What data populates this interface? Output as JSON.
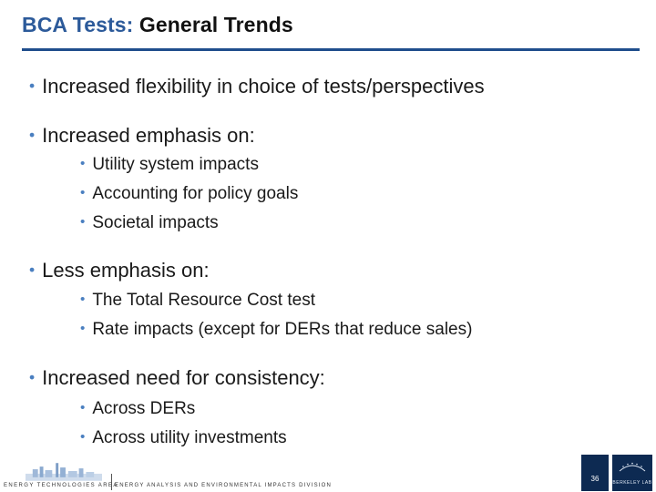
{
  "title": {
    "accent": "BCA Tests:",
    "main": "General Trends"
  },
  "bullets": [
    {
      "text": "Increased flexibility in choice of tests/perspectives",
      "sub": []
    },
    {
      "text": "Increased emphasis on:",
      "sub": [
        "Utility system impacts",
        "Accounting for policy goals",
        "Societal impacts"
      ]
    },
    {
      "text": "Less emphasis on:",
      "sub": [
        "The Total Resource Cost test",
        "Rate impacts (except for DERs that reduce sales)"
      ]
    },
    {
      "text": "Increased need for consistency:",
      "sub": [
        "Across DERs",
        "Across utility investments"
      ]
    }
  ],
  "bullet_glyph": "•",
  "footer": {
    "area": "Energy Technologies Area",
    "division": "Energy Analysis and Environmental Impacts Division",
    "page_number": "36",
    "lab_name": "BERKELEY LAB"
  },
  "colors": {
    "accent": "#2c5a9a",
    "rule": "#1f4e8c",
    "bullet": "#4a7fc0",
    "footer_box": "#0d2a52"
  }
}
